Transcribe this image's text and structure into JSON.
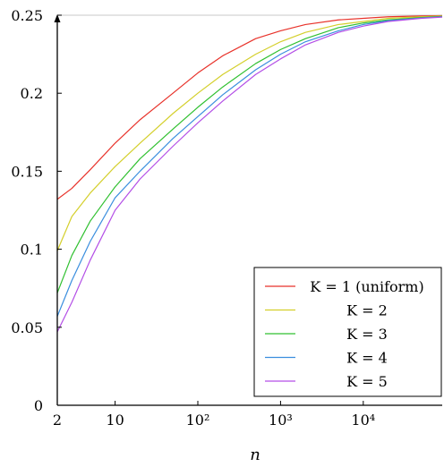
{
  "chart_data": {
    "type": "line",
    "title": "",
    "xlabel": "n",
    "ylabel": "",
    "x_scale": "log",
    "xlim": [
      2,
      90000
    ],
    "ylim": [
      0,
      0.25
    ],
    "grid": false,
    "legend_position": "bottom-right",
    "x_ticks": [
      {
        "value": 2,
        "label": "2"
      },
      {
        "value": 10,
        "label": "10"
      },
      {
        "value": 100,
        "label": "10²"
      },
      {
        "value": 1000,
        "label": "10³"
      },
      {
        "value": 10000,
        "label": "10⁴"
      }
    ],
    "y_ticks": [
      {
        "value": 0,
        "label": "0"
      },
      {
        "value": 0.05,
        "label": "0.05"
      },
      {
        "value": 0.1,
        "label": "0.1"
      },
      {
        "value": 0.15,
        "label": "0.15"
      },
      {
        "value": 0.2,
        "label": "0.2"
      },
      {
        "value": 0.25,
        "label": "0.25"
      }
    ],
    "x": [
      2,
      3,
      5,
      10,
      20,
      50,
      100,
      200,
      500,
      1000,
      2000,
      5000,
      10000,
      20000,
      50000,
      90000
    ],
    "series": [
      {
        "name": "K = 1 (uniform)",
        "color": "#e8322a",
        "values": [
          0.132,
          0.139,
          0.151,
          0.168,
          0.183,
          0.2,
          0.213,
          0.224,
          0.235,
          0.24,
          0.244,
          0.247,
          0.248,
          0.249,
          0.2495,
          0.2497
        ]
      },
      {
        "name": "K = 2",
        "color": "#d4cf2b",
        "values": [
          0.099,
          0.121,
          0.136,
          0.153,
          0.168,
          0.187,
          0.2,
          0.212,
          0.225,
          0.233,
          0.239,
          0.244,
          0.246,
          0.248,
          0.249,
          0.2495
        ]
      },
      {
        "name": "K = 3",
        "color": "#30c030",
        "values": [
          0.072,
          0.096,
          0.118,
          0.14,
          0.158,
          0.177,
          0.191,
          0.204,
          0.219,
          0.228,
          0.235,
          0.242,
          0.245,
          0.247,
          0.2485,
          0.2492
        ]
      },
      {
        "name": "K = 4",
        "color": "#3a8ede",
        "values": [
          0.057,
          0.08,
          0.105,
          0.133,
          0.15,
          0.171,
          0.185,
          0.199,
          0.215,
          0.225,
          0.233,
          0.24,
          0.244,
          0.2465,
          0.2482,
          0.249
        ]
      },
      {
        "name": "K = 5",
        "color": "#b34ee6",
        "values": [
          0.047,
          0.066,
          0.093,
          0.125,
          0.145,
          0.166,
          0.181,
          0.195,
          0.212,
          0.222,
          0.231,
          0.239,
          0.243,
          0.246,
          0.248,
          0.2488
        ]
      }
    ]
  }
}
